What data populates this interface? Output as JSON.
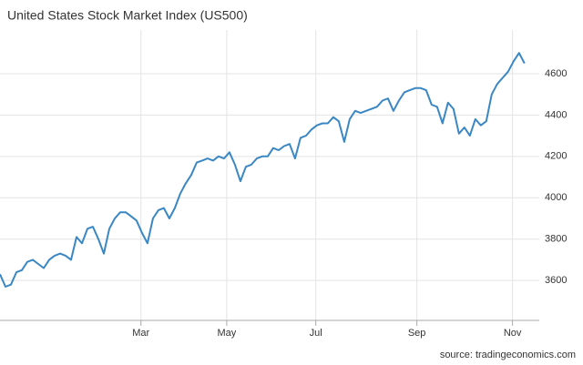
{
  "chart_data": {
    "type": "line",
    "title": "United States Stock Market Index (US500)",
    "source": "source: tradingeconomics.com",
    "color": "#3a87c4",
    "values": [
      3630,
      3570,
      3580,
      3640,
      3650,
      3690,
      3700,
      3680,
      3660,
      3700,
      3720,
      3730,
      3720,
      3700,
      3810,
      3780,
      3850,
      3860,
      3800,
      3730,
      3850,
      3900,
      3930,
      3930,
      3910,
      3890,
      3830,
      3780,
      3900,
      3940,
      3950,
      3900,
      3950,
      4020,
      4070,
      4110,
      4170,
      4180,
      4190,
      4180,
      4200,
      4190,
      4220,
      4160,
      4080,
      4150,
      4160,
      4190,
      4200,
      4200,
      4240,
      4230,
      4250,
      4260,
      4190,
      4290,
      4300,
      4330,
      4350,
      4360,
      4360,
      4390,
      4370,
      4270,
      4380,
      4420,
      4410,
      4420,
      4430,
      4440,
      4470,
      4480,
      4420,
      4470,
      4510,
      4520,
      4530,
      4530,
      4520,
      4450,
      4440,
      4360,
      4460,
      4430,
      4310,
      4340,
      4300,
      4380,
      4350,
      4370,
      4500,
      4550,
      4580,
      4610,
      4660,
      4700,
      4650
    ],
    "xlim": [
      0,
      98.7
    ],
    "xticks": [
      {
        "value": 25.8,
        "label": "Mar"
      },
      {
        "value": 41.5,
        "label": "May"
      },
      {
        "value": 57.8,
        "label": "Jul"
      },
      {
        "value": 76.3,
        "label": "Sep"
      },
      {
        "value": 93.8,
        "label": "Nov"
      }
    ],
    "ylim": [
      3407,
      4811
    ],
    "yticks": [
      3600,
      3800,
      4000,
      4200,
      4400,
      4600
    ],
    "grid": true
  }
}
